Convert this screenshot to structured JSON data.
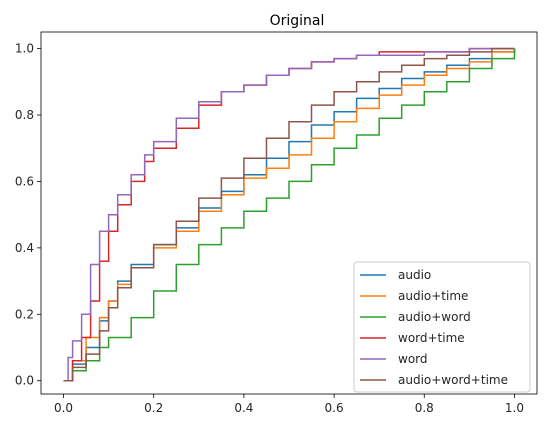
{
  "chart_data": {
    "type": "line",
    "title": "Original",
    "xlabel": "",
    "ylabel": "",
    "xlim": [
      -0.05,
      1.05
    ],
    "ylim": [
      -0.04,
      1.05
    ],
    "xticks": [
      "0.0",
      "0.2",
      "0.4",
      "0.6",
      "0.8",
      "1.0"
    ],
    "yticks": [
      "0.0",
      "0.2",
      "0.4",
      "0.6",
      "0.8",
      "1.0"
    ],
    "grid": false,
    "legend_position": "bottom-right",
    "series": [
      {
        "name": "audio",
        "color": "#1f77b4",
        "points": [
          [
            0,
            0
          ],
          [
            0.02,
            0.05
          ],
          [
            0.05,
            0.1
          ],
          [
            0.08,
            0.18
          ],
          [
            0.1,
            0.24
          ],
          [
            0.12,
            0.3
          ],
          [
            0.15,
            0.35
          ],
          [
            0.2,
            0.41
          ],
          [
            0.25,
            0.46
          ],
          [
            0.3,
            0.52
          ],
          [
            0.35,
            0.57
          ],
          [
            0.4,
            0.62
          ],
          [
            0.45,
            0.67
          ],
          [
            0.5,
            0.72
          ],
          [
            0.55,
            0.77
          ],
          [
            0.6,
            0.81
          ],
          [
            0.65,
            0.85
          ],
          [
            0.7,
            0.88
          ],
          [
            0.75,
            0.91
          ],
          [
            0.8,
            0.93
          ],
          [
            0.85,
            0.95
          ],
          [
            0.9,
            0.97
          ],
          [
            0.95,
            0.99
          ],
          [
            1.0,
            1.0
          ]
        ]
      },
      {
        "name": "audio+time",
        "color": "#ff7f0e",
        "points": [
          [
            0,
            0
          ],
          [
            0.02,
            0.06
          ],
          [
            0.05,
            0.13
          ],
          [
            0.08,
            0.19
          ],
          [
            0.1,
            0.24
          ],
          [
            0.12,
            0.29
          ],
          [
            0.15,
            0.34
          ],
          [
            0.2,
            0.4
          ],
          [
            0.25,
            0.45
          ],
          [
            0.3,
            0.51
          ],
          [
            0.35,
            0.56
          ],
          [
            0.4,
            0.61
          ],
          [
            0.45,
            0.64
          ],
          [
            0.5,
            0.68
          ],
          [
            0.55,
            0.73
          ],
          [
            0.6,
            0.78
          ],
          [
            0.65,
            0.82
          ],
          [
            0.7,
            0.86
          ],
          [
            0.75,
            0.89
          ],
          [
            0.8,
            0.92
          ],
          [
            0.85,
            0.94
          ],
          [
            0.9,
            0.96
          ],
          [
            0.95,
            0.99
          ],
          [
            1.0,
            1.0
          ]
        ]
      },
      {
        "name": "audio+word",
        "color": "#2ca02c",
        "points": [
          [
            0,
            0
          ],
          [
            0.02,
            0.03
          ],
          [
            0.05,
            0.06
          ],
          [
            0.08,
            0.1
          ],
          [
            0.1,
            0.13
          ],
          [
            0.15,
            0.19
          ],
          [
            0.2,
            0.27
          ],
          [
            0.25,
            0.35
          ],
          [
            0.3,
            0.41
          ],
          [
            0.35,
            0.46
          ],
          [
            0.4,
            0.51
          ],
          [
            0.45,
            0.55
          ],
          [
            0.5,
            0.6
          ],
          [
            0.55,
            0.65
          ],
          [
            0.6,
            0.7
          ],
          [
            0.65,
            0.74
          ],
          [
            0.7,
            0.79
          ],
          [
            0.75,
            0.83
          ],
          [
            0.8,
            0.87
          ],
          [
            0.85,
            0.9
          ],
          [
            0.9,
            0.94
          ],
          [
            0.95,
            0.97
          ],
          [
            1.0,
            1.0
          ]
        ]
      },
      {
        "name": "word+time",
        "color": "#d62728",
        "points": [
          [
            0,
            0
          ],
          [
            0.02,
            0.06
          ],
          [
            0.04,
            0.13
          ],
          [
            0.06,
            0.24
          ],
          [
            0.08,
            0.36
          ],
          [
            0.1,
            0.45
          ],
          [
            0.12,
            0.53
          ],
          [
            0.15,
            0.6
          ],
          [
            0.18,
            0.66
          ],
          [
            0.2,
            0.7
          ],
          [
            0.25,
            0.76
          ],
          [
            0.3,
            0.83
          ],
          [
            0.35,
            0.87
          ],
          [
            0.4,
            0.89
          ],
          [
            0.45,
            0.92
          ],
          [
            0.5,
            0.94
          ],
          [
            0.55,
            0.96
          ],
          [
            0.6,
            0.97
          ],
          [
            0.65,
            0.98
          ],
          [
            0.7,
            0.99
          ],
          [
            0.8,
            0.99
          ],
          [
            0.9,
            1.0
          ],
          [
            1.0,
            1.0
          ]
        ]
      },
      {
        "name": "word",
        "color": "#9467bd",
        "points": [
          [
            0,
            0
          ],
          [
            0.01,
            0.07
          ],
          [
            0.02,
            0.12
          ],
          [
            0.04,
            0.2
          ],
          [
            0.06,
            0.35
          ],
          [
            0.08,
            0.45
          ],
          [
            0.1,
            0.5
          ],
          [
            0.12,
            0.56
          ],
          [
            0.15,
            0.62
          ],
          [
            0.18,
            0.68
          ],
          [
            0.2,
            0.72
          ],
          [
            0.25,
            0.79
          ],
          [
            0.3,
            0.84
          ],
          [
            0.35,
            0.87
          ],
          [
            0.4,
            0.89
          ],
          [
            0.45,
            0.92
          ],
          [
            0.5,
            0.94
          ],
          [
            0.55,
            0.96
          ],
          [
            0.6,
            0.97
          ],
          [
            0.65,
            0.98
          ],
          [
            0.7,
            0.98
          ],
          [
            0.8,
            0.99
          ],
          [
            0.9,
            1.0
          ],
          [
            1.0,
            1.0
          ]
        ]
      },
      {
        "name": "audio+word+time",
        "color": "#8c564b",
        "points": [
          [
            0,
            0
          ],
          [
            0.02,
            0.04
          ],
          [
            0.05,
            0.08
          ],
          [
            0.08,
            0.15
          ],
          [
            0.1,
            0.22
          ],
          [
            0.12,
            0.28
          ],
          [
            0.15,
            0.34
          ],
          [
            0.2,
            0.41
          ],
          [
            0.25,
            0.48
          ],
          [
            0.3,
            0.55
          ],
          [
            0.35,
            0.61
          ],
          [
            0.4,
            0.67
          ],
          [
            0.45,
            0.73
          ],
          [
            0.5,
            0.78
          ],
          [
            0.55,
            0.83
          ],
          [
            0.6,
            0.87
          ],
          [
            0.65,
            0.9
          ],
          [
            0.7,
            0.93
          ],
          [
            0.75,
            0.95
          ],
          [
            0.8,
            0.97
          ],
          [
            0.85,
            0.98
          ],
          [
            0.9,
            0.99
          ],
          [
            0.95,
            1.0
          ],
          [
            1.0,
            1.0
          ]
        ]
      }
    ]
  }
}
